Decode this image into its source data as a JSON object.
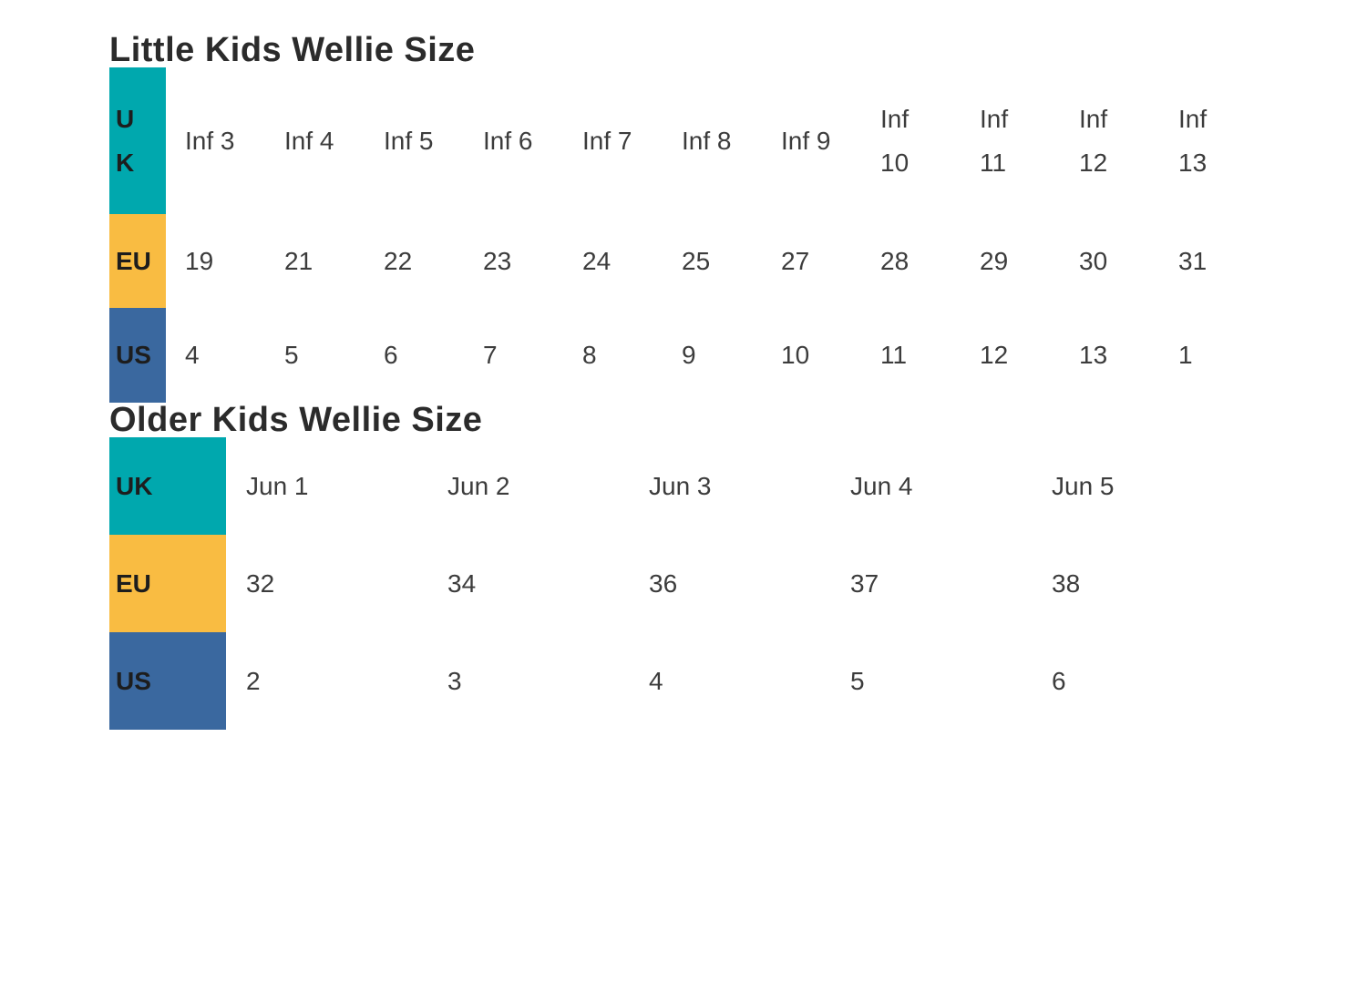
{
  "colors": {
    "uk_bg": "#00a8ae",
    "eu_bg": "#f9bc42",
    "us_bg": "#3a689f",
    "heading_text": "#2b2b2b",
    "label_text": "#1d1d1d",
    "cell_text": "#3c3c3c",
    "page_bg": "#ffffff"
  },
  "little_kids": {
    "title": "Little Kids Wellie Size",
    "rows": [
      {
        "label": "UK",
        "values": [
          "Inf 3",
          "Inf 4",
          "Inf 5",
          "Inf 6",
          "Inf 7",
          "Inf 8",
          "Inf 9",
          "Inf 10",
          "Inf 11",
          "Inf 12",
          "Inf 13"
        ]
      },
      {
        "label": "EU",
        "values": [
          "19",
          "21",
          "22",
          "23",
          "24",
          "25",
          "27",
          "28",
          "29",
          "30",
          "31"
        ]
      },
      {
        "label": "US",
        "values": [
          "4",
          "5",
          "6",
          "7",
          "8",
          "9",
          "10",
          "11",
          "12",
          "13",
          "1"
        ]
      }
    ]
  },
  "older_kids": {
    "title": "Older Kids Wellie Size",
    "rows": [
      {
        "label": "UK",
        "values": [
          "Jun 1",
          "Jun 2",
          "Jun 3",
          "Jun 4",
          "Jun 5"
        ]
      },
      {
        "label": "EU",
        "values": [
          "32",
          "34",
          "36",
          "37",
          "38"
        ]
      },
      {
        "label": "US",
        "values": [
          "2",
          "3",
          "4",
          "5",
          "6"
        ]
      }
    ]
  }
}
